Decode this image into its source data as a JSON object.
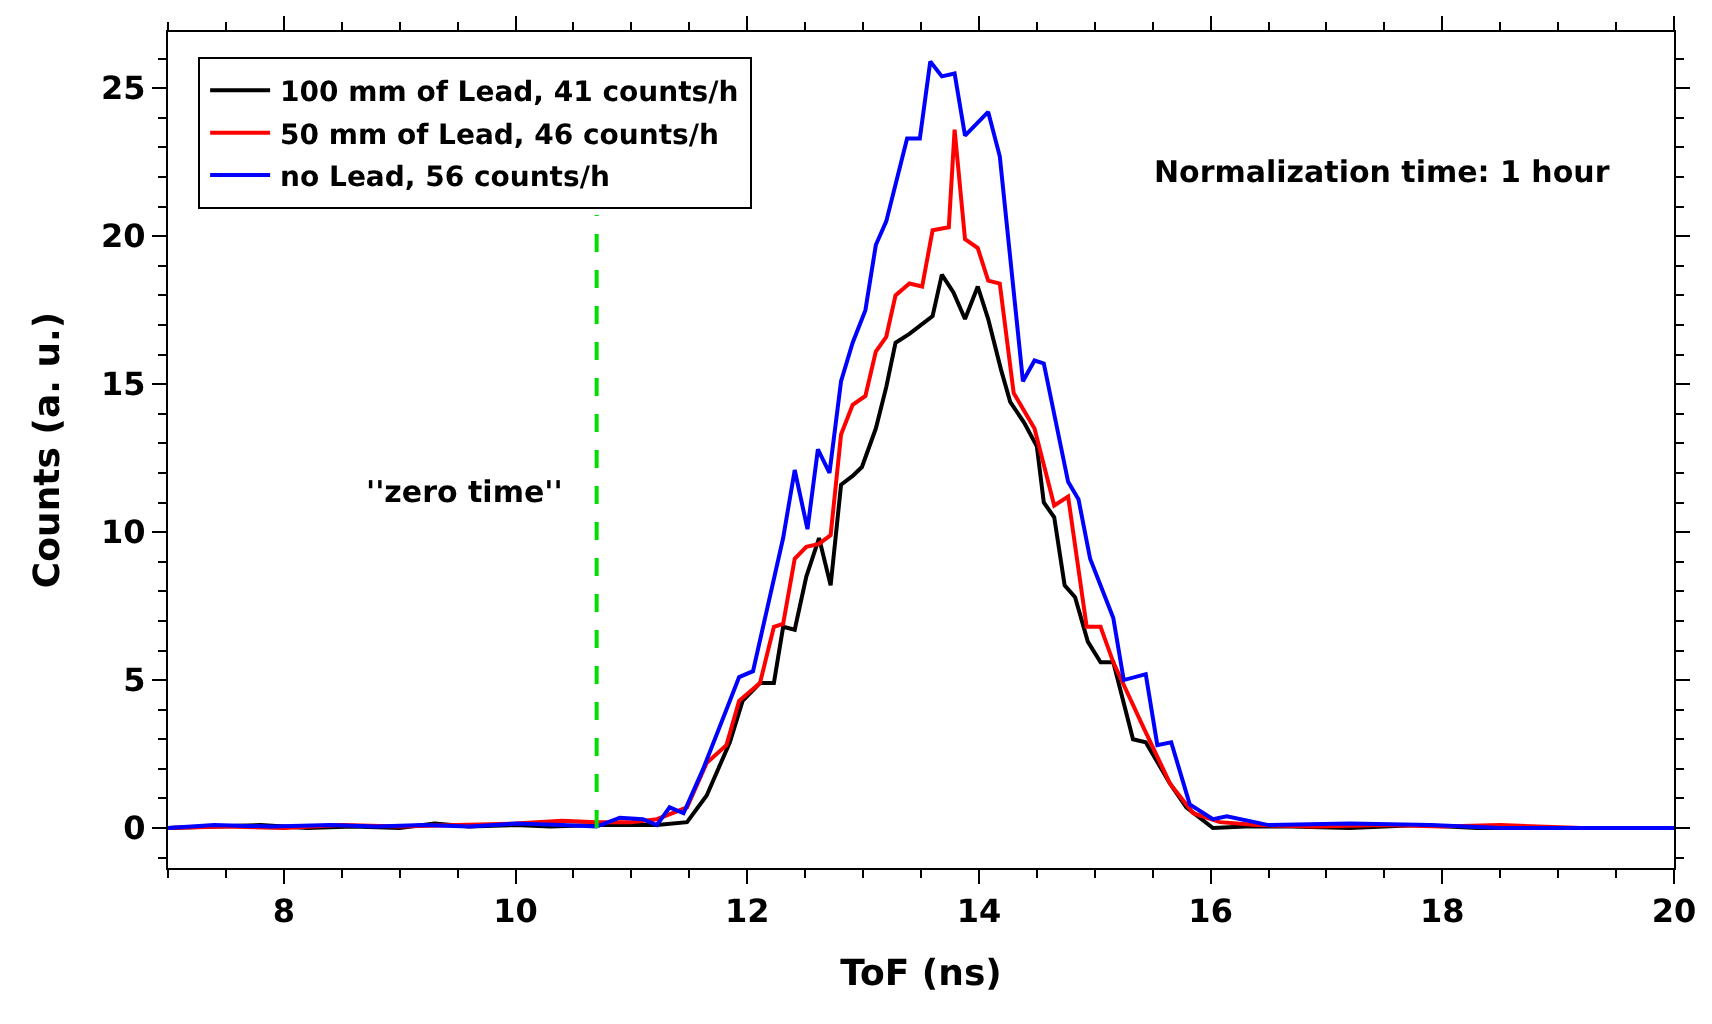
{
  "chart_data": {
    "type": "line",
    "xlabel": "ToF (ns)",
    "ylabel": "Counts (a. u.)",
    "xlim": [
      7,
      20
    ],
    "ylim": [
      -1.35,
      26.9
    ],
    "xticks": [
      8,
      10,
      12,
      14,
      16,
      18,
      20
    ],
    "yticks": [
      0,
      5,
      10,
      15,
      20,
      25
    ],
    "legend": "top left",
    "marker": "none",
    "line_style": "solid",
    "series": [
      {
        "name": "100 mm of Lead, 41 counts/h",
        "color": "#000000",
        "x": [
          7,
          7.4,
          7.8,
          8.2,
          8.6,
          9.0,
          9.3,
          9.6,
          10.0,
          10.3,
          10.7,
          11.0,
          11.22,
          11.48,
          11.65,
          11.85,
          11.96,
          12.11,
          12.23,
          12.31,
          12.41,
          12.51,
          12.62,
          12.72,
          12.81,
          12.91,
          12.99,
          13.11,
          13.2,
          13.28,
          13.4,
          13.6,
          13.68,
          13.78,
          13.88,
          13.99,
          14.08,
          14.19,
          14.27,
          14.39,
          14.5,
          14.56,
          14.65,
          14.74,
          14.83,
          14.94,
          15.05,
          15.16,
          15.33,
          15.44,
          15.65,
          15.79,
          16.02,
          16.3,
          16.7,
          17.2,
          17.8,
          18.3,
          19.0,
          19.5,
          20
        ],
        "values": [
          0,
          0.05,
          0.1,
          0,
          0.05,
          0,
          0.15,
          0.05,
          0.1,
          0.05,
          0.1,
          0.1,
          0.1,
          0.2,
          1.1,
          2.9,
          4.3,
          4.9,
          4.9,
          6.8,
          6.7,
          8.5,
          9.8,
          8.2,
          11.6,
          11.9,
          12.2,
          13.5,
          14.9,
          16.4,
          16.7,
          17.3,
          18.7,
          18.1,
          17.2,
          18.3,
          17.2,
          15.5,
          14.4,
          13.7,
          12.9,
          11.0,
          10.5,
          8.2,
          7.8,
          6.3,
          5.6,
          5.6,
          3.0,
          2.9,
          1.5,
          0.7,
          0,
          0.05,
          0.05,
          0,
          0.1,
          0,
          0,
          0,
          0
        ]
      },
      {
        "name": "50 mm of Lead, 46 counts/h",
        "color": "#ff0000",
        "x": [
          7,
          7.5,
          8.0,
          8.5,
          9.0,
          9.5,
          10.0,
          10.4,
          10.7,
          11.0,
          11.22,
          11.48,
          11.65,
          11.82,
          11.93,
          12.11,
          12.23,
          12.31,
          12.41,
          12.51,
          12.62,
          12.72,
          12.81,
          12.91,
          13.02,
          13.11,
          13.2,
          13.28,
          13.4,
          13.51,
          13.6,
          13.74,
          13.79,
          13.88,
          13.99,
          14.08,
          14.18,
          14.3,
          14.48,
          14.65,
          14.77,
          14.93,
          15.05,
          15.16,
          15.42,
          15.65,
          15.85,
          16.08,
          16.4,
          16.9,
          17.5,
          18.0,
          18.5,
          19.2,
          20
        ],
        "values": [
          0,
          0.05,
          0,
          0.1,
          0.05,
          0.1,
          0.15,
          0.25,
          0.2,
          0.2,
          0.3,
          0.7,
          2.2,
          2.8,
          4.3,
          4.9,
          6.8,
          6.9,
          9.1,
          9.5,
          9.6,
          9.9,
          13.3,
          14.3,
          14.6,
          16.1,
          16.6,
          18.0,
          18.4,
          18.3,
          20.2,
          20.3,
          23.6,
          19.9,
          19.6,
          18.5,
          18.4,
          14.7,
          13.5,
          10.9,
          11.2,
          6.8,
          6.8,
          5.6,
          3.4,
          1.5,
          0.5,
          0.2,
          0.1,
          0.05,
          0.1,
          0.05,
          0.1,
          0,
          0
        ]
      },
      {
        "name": "no Lead, 56 counts/h",
        "color": "#0000ff",
        "x": [
          7,
          7.4,
          7.9,
          8.4,
          8.8,
          9.2,
          9.6,
          10.0,
          10.4,
          10.7,
          10.9,
          11.1,
          11.22,
          11.33,
          11.45,
          11.62,
          11.82,
          11.93,
          12.05,
          12.31,
          12.41,
          12.52,
          12.61,
          12.71,
          12.81,
          12.91,
          13.02,
          13.11,
          13.2,
          13.38,
          13.49,
          13.58,
          13.68,
          13.79,
          13.88,
          14.08,
          14.18,
          14.38,
          14.48,
          14.56,
          14.77,
          14.86,
          14.96,
          15.16,
          15.25,
          15.44,
          15.54,
          15.66,
          15.82,
          16.02,
          16.14,
          16.5,
          17.2,
          17.9,
          18.5,
          19.3,
          20
        ],
        "values": [
          0,
          0.1,
          0.05,
          0.1,
          0.05,
          0.1,
          0.05,
          0.15,
          0.1,
          0.05,
          0.35,
          0.3,
          0.1,
          0.7,
          0.5,
          2.0,
          4.0,
          5.1,
          5.3,
          9.8,
          12.1,
          10.1,
          12.8,
          12.0,
          15.1,
          16.4,
          17.5,
          19.7,
          20.5,
          23.3,
          23.3,
          25.9,
          25.4,
          25.5,
          23.4,
          24.2,
          22.7,
          15.1,
          15.8,
          15.7,
          11.7,
          11.1,
          9.1,
          7.1,
          5.0,
          5.2,
          2.8,
          2.9,
          0.8,
          0.3,
          0.4,
          0.1,
          0.15,
          0.1,
          0,
          0,
          0
        ]
      }
    ],
    "ref_lines": [
      {
        "axis": "x",
        "value": 10.7,
        "color": "#00dd00",
        "line_style": "dashed"
      }
    ],
    "annotations": [
      "''zero time''",
      "Normalization time: 1 hour"
    ]
  }
}
